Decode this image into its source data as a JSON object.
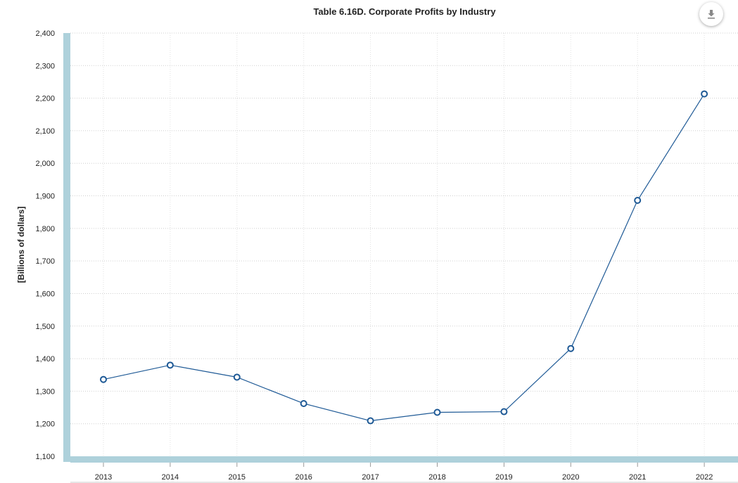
{
  "chart_data": {
    "type": "line",
    "title": "Table 6.16D. Corporate Profits by Industry",
    "xlabel": "",
    "ylabel": "[Billions of dollars]",
    "ylim": [
      1100,
      2400
    ],
    "grid": true,
    "legend": "none",
    "categories": [
      "2013",
      "2014",
      "2015",
      "2016",
      "2017",
      "2018",
      "2019",
      "2020",
      "2021",
      "2022"
    ],
    "y_ticks": [
      "1,100",
      "1,200",
      "1,300",
      "1,400",
      "1,500",
      "1,600",
      "1,700",
      "1,800",
      "1,900",
      "2,000",
      "2,100",
      "2,200",
      "2,300",
      "2,400"
    ],
    "series": [
      {
        "values": [
          1336,
          1380,
          1343,
          1262,
          1209,
          1235,
          1237,
          1431,
          1886,
          2213
        ],
        "color": "#1f5a96"
      }
    ],
    "axis_band_color": "#aed1db"
  },
  "toolbar": {
    "download_icon": "download-icon"
  }
}
